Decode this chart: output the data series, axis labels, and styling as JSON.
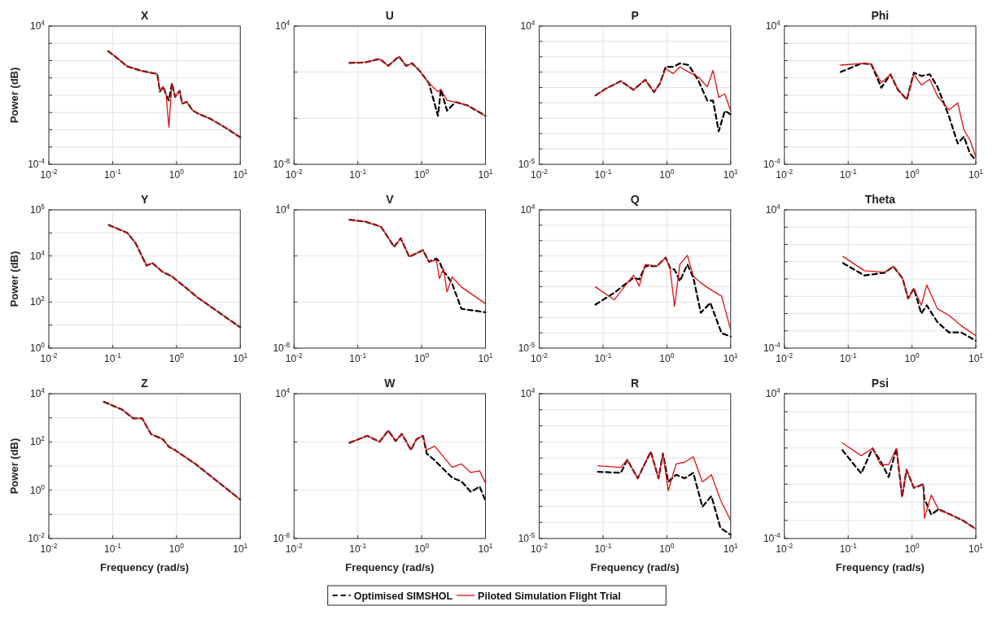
{
  "chart_data": [
    {
      "type": "line",
      "title": "X",
      "ylabel": "Power (dB)",
      "log": "xy",
      "grid": true,
      "legend": "bottom",
      "xlim": [
        0.01,
        10
      ],
      "ylim": [
        0.0001,
        10000
      ],
      "xticks": [
        {
          "value": 0.01,
          "label": "10$^{-2}$"
        },
        {
          "value": 0.1,
          "label": "10$^{-1}$"
        },
        {
          "value": 1,
          "label": "10$^{0}$"
        },
        {
          "value": 10,
          "label": "10$^{1}$"
        }
      ],
      "yticks": [
        {
          "value": 0.0001,
          "label": "10$^{-4}$"
        },
        {
          "value": 0.001,
          "label": null
        },
        {
          "value": 0.01,
          "label": null
        },
        {
          "value": 0.1,
          "label": null
        },
        {
          "value": 1,
          "label": null
        },
        {
          "value": 10,
          "label": null
        },
        {
          "value": 100,
          "label": null
        },
        {
          "value": 1000,
          "label": null
        },
        {
          "value": 10000,
          "label": "10$^{4}$"
        }
      ],
      "x": [
        0.085,
        0.11,
        0.17,
        0.29,
        0.5,
        0.55,
        0.62,
        0.69,
        0.76,
        0.85,
        0.95,
        1.12,
        1.23,
        1.45,
        1.8,
        2.2,
        3.4,
        5.9,
        10
      ],
      "series": [
        {
          "name": "Optimised SIMSHOL",
          "color": "#000000",
          "line_style": "dashed",
          "values": [
            350,
            170,
            46,
            25,
            17,
            1.6,
            3.1,
            1,
            0.5,
            4.8,
            0.8,
            1.8,
            0.32,
            0.41,
            0.13,
            0.085,
            0.043,
            0.013,
            0.0036
          ]
        },
        {
          "name": "Piloted Simulation Flight Trial",
          "color": "#e01010",
          "line_style": "solid",
          "values": [
            350,
            170,
            46,
            25,
            17,
            1.6,
            3.1,
            1,
            0.014,
            4.8,
            0.8,
            1.8,
            0.32,
            0.41,
            0.13,
            0.085,
            0.043,
            0.013,
            0.0036
          ]
        }
      ]
    },
    {
      "type": "line",
      "title": "U",
      "log": "xy",
      "grid": true,
      "xlim": [
        0.01,
        10
      ],
      "ylim": [
        1e-08,
        10000
      ],
      "xticks": [
        {
          "value": 0.01,
          "label": "10$^{-2}$"
        },
        {
          "value": 0.1,
          "label": "10$^{-1}$"
        },
        {
          "value": 1,
          "label": "10$^{0}$"
        },
        {
          "value": 10,
          "label": "10$^{1}$"
        }
      ],
      "yticks": [
        {
          "value": 1e-08,
          "label": "10$^{-8}$"
        },
        {
          "value": 0.0001,
          "label": null
        },
        {
          "value": 1,
          "label": null
        },
        {
          "value": 10000,
          "label": "10$^{4}$"
        }
      ],
      "x": [
        0.074,
        0.13,
        0.22,
        0.3,
        0.44,
        0.57,
        0.71,
        0.93,
        1.3,
        1.8,
        2,
        2.5,
        3.4,
        5.2,
        10
      ],
      "series": [
        {
          "color": "#000000",
          "line_style": "dashed",
          "values": [
            6.2,
            7,
            14,
            3.5,
            23,
            3.5,
            5.8,
            1.3,
            0.11,
            0.00016,
            0.032,
            0.00045,
            0.0025,
            0.0013,
            0.00016
          ]
        },
        {
          "color": "#e01010",
          "line_style": "solid",
          "values": [
            6.2,
            7,
            14,
            3.5,
            23,
            3.5,
            5.8,
            1.3,
            0.11,
            0.02,
            0.032,
            0.0035,
            0.0025,
            0.0013,
            0.00016
          ]
        }
      ]
    },
    {
      "type": "line",
      "title": "P",
      "log": "xy",
      "grid": true,
      "xlim": [
        0.01,
        10
      ],
      "ylim": [
        1e-05,
        10000
      ],
      "xticks": [
        {
          "value": 0.01,
          "label": "10$^{-2}$"
        },
        {
          "value": 0.1,
          "label": "10$^{-1}$"
        },
        {
          "value": 1,
          "label": "10$^{0}$"
        },
        {
          "value": 10,
          "label": "10$^{1}$"
        }
      ],
      "yticks": [
        {
          "value": 1e-05,
          "label": "10$^{-5}$"
        },
        {
          "value": 0.0001,
          "label": null
        },
        {
          "value": 0.001,
          "label": null
        },
        {
          "value": 0.01,
          "label": null
        },
        {
          "value": 0.1,
          "label": null
        },
        {
          "value": 1,
          "label": null
        },
        {
          "value": 10,
          "label": null
        },
        {
          "value": 100,
          "label": null
        },
        {
          "value": 1000,
          "label": null
        },
        {
          "value": 10000,
          "label": "10$^{4}$"
        }
      ],
      "x": [
        0.076,
        0.11,
        0.19,
        0.3,
        0.46,
        0.63,
        0.78,
        0.96,
        1.25,
        1.6,
        2.2,
        3.1,
        4.3,
        5.3,
        6.5,
        8.1,
        10
      ],
      "series": [
        {
          "color": "#000000",
          "line_style": "dashed",
          "values": [
            0.3,
            0.83,
            2.6,
            0.7,
            3.2,
            0.5,
            1.8,
            22,
            22,
            37,
            29,
            3,
            0.14,
            0.14,
            0.0014,
            0.03,
            0.018
          ]
        },
        {
          "color": "#e01010",
          "line_style": "solid",
          "values": [
            0.3,
            0.83,
            2.6,
            0.7,
            3.2,
            0.5,
            1.8,
            17,
            8,
            22,
            10,
            4.9,
            1.1,
            13,
            0.23,
            0.38,
            0.03
          ]
        }
      ]
    },
    {
      "type": "line",
      "title": "Phi",
      "log": "xy",
      "grid": true,
      "xlim": [
        0.01,
        10
      ],
      "ylim": [
        0.0001,
        10000
      ],
      "xticks": [
        {
          "value": 0.01,
          "label": "10$^{-2}$"
        },
        {
          "value": 0.1,
          "label": "10$^{-1}$"
        },
        {
          "value": 1,
          "label": "10$^{0}$"
        },
        {
          "value": 10,
          "label": "10$^{1}$"
        }
      ],
      "yticks": [
        {
          "value": 0.0001,
          "label": "10$^{-4}$"
        },
        {
          "value": 0.001,
          "label": null
        },
        {
          "value": 0.01,
          "label": null
        },
        {
          "value": 0.1,
          "label": null
        },
        {
          "value": 1,
          "label": null
        },
        {
          "value": 10,
          "label": null
        },
        {
          "value": 100,
          "label": null
        },
        {
          "value": 1000,
          "label": null
        },
        {
          "value": 10000,
          "label": "10$^{4}$"
        }
      ],
      "x": [
        0.076,
        0.16,
        0.23,
        0.33,
        0.46,
        0.6,
        0.83,
        1.07,
        1.4,
        1.9,
        2.5,
        3.8,
        5.2,
        6.5,
        8.1,
        10
      ],
      "series": [
        {
          "color": "#000000",
          "line_style": "dashed",
          "values": [
            22,
            68,
            63,
            2.7,
            16,
            2.1,
            0.56,
            20,
            13,
            16,
            3.1,
            0.059,
            0.0016,
            0.004,
            0.00042,
            0.00017
          ]
        },
        {
          "color": "#e01010",
          "line_style": "solid",
          "values": [
            55,
            68,
            63,
            5.2,
            16,
            2.1,
            0.56,
            16,
            3.9,
            8.3,
            0.9,
            0.14,
            0.36,
            0.01,
            0.0025,
            0.00027
          ]
        }
      ]
    },
    {
      "type": "line",
      "title": "Y",
      "ylabel": "Power (dB)",
      "log": "xy",
      "grid": true,
      "xlim": [
        0.01,
        10
      ],
      "ylim": [
        1,
        1000000
      ],
      "xticks": [
        {
          "value": 0.01,
          "label": "10$^{-2}$"
        },
        {
          "value": 0.1,
          "label": "10$^{-1}$"
        },
        {
          "value": 1,
          "label": "10$^{0}$"
        },
        {
          "value": 10,
          "label": "10$^{1}$"
        }
      ],
      "yticks": [
        {
          "value": 1,
          "label": "10$^{0}$"
        },
        {
          "value": 10,
          "label": null
        },
        {
          "value": 100,
          "label": "10$^{2}$"
        },
        {
          "value": 1000,
          "label": null
        },
        {
          "value": 10000,
          "label": "10$^{4}$"
        },
        {
          "value": 100000,
          "label": null
        },
        {
          "value": 1000000,
          "label": "10$^{6}$"
        }
      ],
      "x": [
        0.087,
        0.17,
        0.23,
        0.34,
        0.42,
        0.61,
        0.85,
        2.2,
        10
      ],
      "series": [
        {
          "color": "#000000",
          "line_style": "dashed",
          "values": [
            220000,
            100000,
            35000,
            3800,
            4900,
            2000,
            1300,
            150,
            8
          ]
        },
        {
          "color": "#e01010",
          "line_style": "solid",
          "values": [
            220000,
            100000,
            35000,
            3800,
            4900,
            2000,
            1300,
            150,
            8
          ]
        }
      ]
    },
    {
      "type": "line",
      "title": "V",
      "log": "xy",
      "grid": true,
      "xlim": [
        0.01,
        10
      ],
      "ylim": [
        1e-08,
        10000
      ],
      "xticks": [
        {
          "value": 0.01,
          "label": "10$^{-2}$"
        },
        {
          "value": 0.1,
          "label": "10$^{-1}$"
        },
        {
          "value": 1,
          "label": "10$^{0}$"
        },
        {
          "value": 10,
          "label": "10$^{1}$"
        }
      ],
      "yticks": [
        {
          "value": 1e-08,
          "label": "10$^{-8}$"
        },
        {
          "value": 0.0001,
          "label": null
        },
        {
          "value": 1,
          "label": null
        },
        {
          "value": 10000,
          "label": "10$^{4}$"
        }
      ],
      "x": [
        0.074,
        0.13,
        0.23,
        0.37,
        0.47,
        0.64,
        0.83,
        1.05,
        1.3,
        1.7,
        1.9,
        2.2,
        2.5,
        3,
        4.2,
        10
      ],
      "series": [
        {
          "color": "#000000",
          "line_style": "dashed",
          "values": [
            1400,
            960,
            350,
            6.3,
            34,
            0.85,
            1.7,
            3.2,
            0.31,
            0.6,
            0.31,
            0.042,
            0.021,
            0.004,
            2.6e-05,
            1.3e-05
          ]
        },
        {
          "color": "#e01010",
          "line_style": "solid",
          "values": [
            1400,
            960,
            350,
            6.3,
            34,
            0.85,
            1.7,
            3.2,
            0.31,
            0.44,
            0.011,
            0.081,
            0.00076,
            0.015,
            0.002,
            7.2e-05
          ]
        }
      ]
    },
    {
      "type": "line",
      "title": "Q",
      "log": "xy",
      "grid": true,
      "xlim": [
        0.01,
        10
      ],
      "ylim": [
        1e-05,
        10000
      ],
      "xticks": [
        {
          "value": 0.01,
          "label": "10$^{-2}$"
        },
        {
          "value": 0.1,
          "label": "10$^{-1}$"
        },
        {
          "value": 1,
          "label": "10$^{0}$"
        },
        {
          "value": 10,
          "label": "10$^{1}$"
        }
      ],
      "yticks": [
        {
          "value": 1e-05,
          "label": "10$^{-5}$"
        },
        {
          "value": 0.0001,
          "label": null
        },
        {
          "value": 0.001,
          "label": null
        },
        {
          "value": 0.01,
          "label": null
        },
        {
          "value": 0.1,
          "label": null
        },
        {
          "value": 1,
          "label": null
        },
        {
          "value": 10,
          "label": null
        },
        {
          "value": 100,
          "label": null
        },
        {
          "value": 1000,
          "label": null
        },
        {
          "value": 10000,
          "label": "10$^{4}$"
        }
      ],
      "x": [
        0.076,
        0.15,
        0.3,
        0.37,
        0.46,
        0.7,
        0.96,
        1.12,
        1.32,
        1.6,
        2.1,
        2.6,
        3.4,
        4.8,
        7.2,
        10
      ],
      "series": [
        {
          "color": "#000000",
          "line_style": "dashed",
          "values": [
            0.0068,
            0.04,
            0.38,
            0.3,
            2.2,
            2.2,
            7.8,
            1.7,
            1.3,
            0.23,
            2.8,
            0.4,
            0.002,
            0.0089,
            9.5e-05,
            5.8e-05
          ]
        },
        {
          "color": "#e01010",
          "line_style": "solid",
          "values": [
            0.098,
            0.014,
            0.56,
            0.11,
            2.8,
            2.2,
            7.8,
            1.7,
            0.0053,
            2.8,
            11,
            0.49,
            0.18,
            0.066,
            0.024,
            0.00016
          ]
        }
      ]
    },
    {
      "type": "line",
      "title": "Theta",
      "log": "xy",
      "grid": true,
      "xlim": [
        0.01,
        10
      ],
      "ylim": [
        0.0001,
        10000
      ],
      "xticks": [
        {
          "value": 0.01,
          "label": "10$^{-2}$"
        },
        {
          "value": 0.1,
          "label": "10$^{-1}$"
        },
        {
          "value": 1,
          "label": "10$^{0}$"
        },
        {
          "value": 10,
          "label": "10$^{1}$"
        }
      ],
      "yticks": [
        {
          "value": 0.0001,
          "label": "10$^{-4}$"
        },
        {
          "value": 0.001,
          "label": null
        },
        {
          "value": 0.01,
          "label": null
        },
        {
          "value": 0.1,
          "label": null
        },
        {
          "value": 1,
          "label": null
        },
        {
          "value": 10,
          "label": null
        },
        {
          "value": 100,
          "label": null
        },
        {
          "value": 1000,
          "label": null
        },
        {
          "value": 10000,
          "label": "10$^{4}$"
        }
      ],
      "x": [
        0.083,
        0.18,
        0.37,
        0.51,
        0.71,
        0.87,
        1.07,
        1.4,
        1.7,
        2.5,
        3.8,
        5.9,
        10
      ],
      "series": [
        {
          "color": "#000000",
          "line_style": "dashed",
          "values": [
            8.3,
            1.6,
            2.3,
            5.3,
            1.1,
            0.074,
            0.28,
            0.01,
            0.03,
            0.0032,
            0.00081,
            0.00081,
            0.00027
          ]
        },
        {
          "color": "#e01010",
          "line_style": "solid",
          "values": [
            20,
            3,
            2.5,
            5.3,
            1.1,
            0.074,
            0.28,
            0.03,
            0.45,
            0.019,
            0.0078,
            0.002,
            0.00052
          ]
        }
      ]
    },
    {
      "type": "line",
      "title": "Z",
      "ylabel": "Power (dB)",
      "xlabel": "Frequency (rad/s)",
      "log": "xy",
      "grid": true,
      "xlim": [
        0.01,
        10
      ],
      "ylim": [
        0.01,
        10000
      ],
      "xticks": [
        {
          "value": 0.01,
          "label": "10$^{-2}$"
        },
        {
          "value": 0.1,
          "label": "10$^{-1}$"
        },
        {
          "value": 1,
          "label": "10$^{0}$"
        },
        {
          "value": 10,
          "label": "10$^{1}$"
        }
      ],
      "yticks": [
        {
          "value": 0.01,
          "label": "10$^{-2}$"
        },
        {
          "value": 0.1,
          "label": null
        },
        {
          "value": 1,
          "label": "10$^{0}$"
        },
        {
          "value": 10,
          "label": null
        },
        {
          "value": 100,
          "label": "10$^{2}$"
        },
        {
          "value": 1000,
          "label": null
        },
        {
          "value": 10000,
          "label": "10$^{4}$"
        }
      ],
      "x": [
        0.073,
        0.14,
        0.21,
        0.29,
        0.4,
        0.61,
        0.76,
        0.95,
        2,
        10
      ],
      "series": [
        {
          "color": "#000000",
          "line_style": "dashed",
          "values": [
            4600,
            2200,
            950,
            950,
            210,
            130,
            63,
            46,
            12,
            0.41
          ]
        },
        {
          "color": "#e01010",
          "line_style": "solid",
          "values": [
            4600,
            2200,
            950,
            950,
            210,
            130,
            63,
            46,
            12,
            0.41
          ]
        }
      ]
    },
    {
      "type": "line",
      "title": "W",
      "xlabel": "Frequency (rad/s)",
      "log": "xy",
      "grid": true,
      "xlim": [
        0.01,
        10
      ],
      "ylim": [
        1e-08,
        10000
      ],
      "xticks": [
        {
          "value": 0.01,
          "label": "10$^{-2}$"
        },
        {
          "value": 0.1,
          "label": "10$^{-1}$"
        },
        {
          "value": 1,
          "label": "10$^{0}$"
        },
        {
          "value": 10,
          "label": "10$^{1}$"
        }
      ],
      "yticks": [
        {
          "value": 1e-08,
          "label": "10$^{-8}$"
        },
        {
          "value": 0.0001,
          "label": null
        },
        {
          "value": 1,
          "label": null
        },
        {
          "value": 10000,
          "label": "10$^{4}$"
        }
      ],
      "x": [
        0.074,
        0.14,
        0.22,
        0.3,
        0.39,
        0.49,
        0.68,
        0.83,
        1.05,
        1.2,
        1.6,
        2.2,
        3,
        4.2,
        5.9,
        8.1,
        10
      ],
      "series": [
        {
          "color": "#000000",
          "line_style": "dashed",
          "values": [
            0.85,
            3.2,
            1.05,
            8.9,
            1.2,
            4.6,
            0.22,
            1.7,
            3.2,
            0.11,
            0.03,
            0.0056,
            0.0011,
            0.00054,
            7.2e-05,
            0.0002,
            1.3e-05
          ]
        },
        {
          "color": "#e01010",
          "line_style": "solid",
          "values": [
            0.85,
            3.2,
            1.05,
            8.9,
            1.2,
            4.6,
            0.22,
            1.7,
            3.2,
            0.22,
            0.44,
            0.059,
            0.008,
            0.015,
            0.0029,
            0.004,
            0.00039
          ]
        }
      ]
    },
    {
      "type": "line",
      "title": "R",
      "xlabel": "Frequency (rad/s)",
      "log": "xy",
      "grid": true,
      "xlim": [
        0.01,
        10
      ],
      "ylim": [
        1e-05,
        10000
      ],
      "xticks": [
        {
          "value": 0.01,
          "label": "10$^{-2}$"
        },
        {
          "value": 0.1,
          "label": "10$^{-1}$"
        },
        {
          "value": 1,
          "label": "10$^{0}$"
        },
        {
          "value": 10,
          "label": "10$^{1}$"
        }
      ],
      "yticks": [
        {
          "value": 1e-05,
          "label": "10$^{-5}$"
        },
        {
          "value": 0.0001,
          "label": null
        },
        {
          "value": 0.001,
          "label": null
        },
        {
          "value": 0.01,
          "label": null
        },
        {
          "value": 0.1,
          "label": null
        },
        {
          "value": 1,
          "label": null
        },
        {
          "value": 10,
          "label": null
        },
        {
          "value": 100,
          "label": null
        },
        {
          "value": 1000,
          "label": null
        },
        {
          "value": 10000,
          "label": "10$^{4}$"
        }
      ],
      "x": [
        0.083,
        0.19,
        0.24,
        0.35,
        0.56,
        0.74,
        0.87,
        1.05,
        1.4,
        1.9,
        2.6,
        3.6,
        5,
        6.9,
        10
      ],
      "series": [
        {
          "color": "#000000",
          "line_style": "dashed",
          "values": [
            0.14,
            0.12,
            0.78,
            0.055,
            2.5,
            0.055,
            1.9,
            0.033,
            0.091,
            0.055,
            0.12,
            0.00094,
            0.0043,
            4.6e-05,
            1.7e-05
          ]
        },
        {
          "color": "#e01010",
          "line_style": "solid",
          "values": [
            0.33,
            0.26,
            0.78,
            0.055,
            2.5,
            0.055,
            1.9,
            0.0093,
            0.43,
            0.55,
            1.2,
            0.033,
            0.091,
            0.0026,
            0.00013
          ]
        }
      ]
    },
    {
      "type": "line",
      "title": "Psi",
      "xlabel": "Frequency (rad/s)",
      "log": "xy",
      "grid": true,
      "xlim": [
        0.01,
        10
      ],
      "ylim": [
        0.0001,
        10000
      ],
      "xticks": [
        {
          "value": 0.01,
          "label": "10$^{-2}$"
        },
        {
          "value": 0.1,
          "label": "10$^{-1}$"
        },
        {
          "value": 1,
          "label": "10$^{0}$"
        },
        {
          "value": 10,
          "label": "10$^{1}$"
        }
      ],
      "yticks": [
        {
          "value": 0.0001,
          "label": "10$^{-4}$"
        },
        {
          "value": 0.001,
          "label": null
        },
        {
          "value": 0.01,
          "label": null
        },
        {
          "value": 0.1,
          "label": null
        },
        {
          "value": 1,
          "label": null
        },
        {
          "value": 10,
          "label": null
        },
        {
          "value": 100,
          "label": null
        },
        {
          "value": 1000,
          "label": null
        },
        {
          "value": 10000,
          "label": "10$^{4}$"
        }
      ],
      "x": [
        0.081,
        0.16,
        0.24,
        0.32,
        0.43,
        0.57,
        0.7,
        0.82,
        1.07,
        1.5,
        1.56,
        2,
        2.6,
        4,
        6.2,
        10
      ],
      "series": [
        {
          "color": "#000000",
          "line_style": "dashed",
          "values": [
            7.6,
            0.39,
            9.5,
            1.9,
            0.25,
            9.5,
            0.02,
            0.62,
            0.063,
            0.1,
            0.016,
            0.0021,
            0.0041,
            0.0021,
            0.001,
            0.00034
          ]
        },
        {
          "color": "#e01010",
          "line_style": "solid",
          "values": [
            19,
            3.8,
            9.5,
            1.2,
            1.2,
            9.5,
            0.02,
            0.62,
            0.063,
            0.1,
            0.0013,
            0.025,
            0.0041,
            0.0021,
            0.001,
            0.00034
          ]
        }
      ]
    }
  ]
}
